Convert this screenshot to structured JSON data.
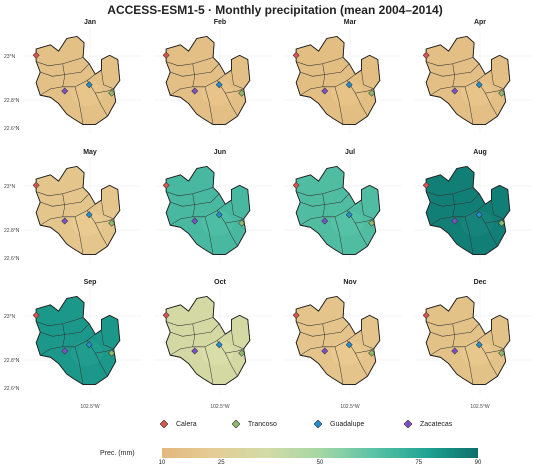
{
  "title": "ACCESS-ESM1-5 · Monthly precipitation (mean 2004–2014)",
  "panels": [
    {
      "month": "Jan",
      "value": 15
    },
    {
      "month": "Feb",
      "value": 14
    },
    {
      "month": "Mar",
      "value": 13
    },
    {
      "month": "Apr",
      "value": 14
    },
    {
      "month": "May",
      "value": 18
    },
    {
      "month": "Jun",
      "value": 68
    },
    {
      "month": "Jul",
      "value": 66
    },
    {
      "month": "Aug",
      "value": 86
    },
    {
      "month": "Sep",
      "value": 80
    },
    {
      "month": "Oct",
      "value": 35
    },
    {
      "month": "Nov",
      "value": 17
    },
    {
      "month": "Dec",
      "value": 16
    }
  ],
  "y_ticks": [
    "23°N",
    "22.8°N",
    "22.6°N"
  ],
  "x_tick": "102.5°W",
  "stations": [
    {
      "name": "Calera",
      "color": "#d9534f"
    },
    {
      "name": "Trancoso",
      "color": "#8fbc6a"
    },
    {
      "name": "Guadalupe",
      "color": "#1f8fd1"
    },
    {
      "name": "Zacatecas",
      "color": "#7b4fc8"
    }
  ],
  "colorbar": {
    "title": "Prec. (mm)",
    "min": 10,
    "max": 90,
    "ticks": [
      10,
      25,
      50,
      75,
      90
    ],
    "colors": [
      "#e2b97d",
      "#e5cd96",
      "#d2dba6",
      "#a5d7a4",
      "#5cc3a6",
      "#22a594",
      "#0b6f6a"
    ]
  }
}
